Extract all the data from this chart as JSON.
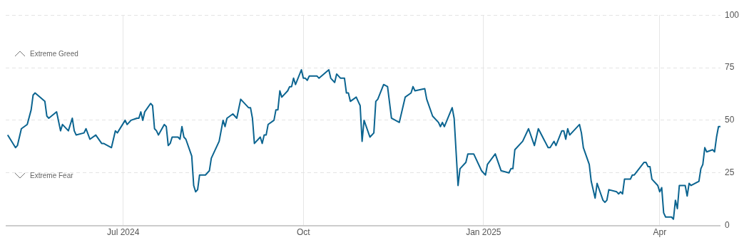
{
  "chart_data": {
    "type": "line",
    "x": [
      "2024-05-03",
      "2024-05-07",
      "2024-05-08",
      "2024-05-10",
      "2024-05-13",
      "2024-05-15",
      "2024-05-16",
      "2024-05-17",
      "2024-05-22",
      "2024-05-23",
      "2024-05-24",
      "2024-05-28",
      "2024-05-30",
      "2024-05-31",
      "2024-06-03",
      "2024-06-05",
      "2024-06-06",
      "2024-06-07",
      "2024-06-11",
      "2024-06-12",
      "2024-06-14",
      "2024-06-17",
      "2024-06-20",
      "2024-06-21",
      "2024-06-25",
      "2024-06-27",
      "2024-06-28",
      "2024-07-02",
      "2024-07-03",
      "2024-07-05",
      "2024-07-08",
      "2024-07-09",
      "2024-07-10",
      "2024-07-11",
      "2024-07-12",
      "2024-07-15",
      "2024-07-16",
      "2024-07-17",
      "2024-07-18",
      "2024-07-19",
      "2024-07-22",
      "2024-07-23",
      "2024-07-24",
      "2024-07-25",
      "2024-07-26",
      "2024-07-29",
      "2024-07-30",
      "2024-07-31",
      "2024-08-01",
      "2024-08-02",
      "2024-08-05",
      "2024-08-06",
      "2024-08-07",
      "2024-08-08",
      "2024-08-09",
      "2024-08-12",
      "2024-08-14",
      "2024-08-15",
      "2024-08-19",
      "2024-08-21",
      "2024-08-22",
      "2024-08-23",
      "2024-08-26",
      "2024-08-28",
      "2024-08-30",
      "2024-09-03",
      "2024-09-04",
      "2024-09-05",
      "2024-09-06",
      "2024-09-09",
      "2024-09-10",
      "2024-09-11",
      "2024-09-12",
      "2024-09-13",
      "2024-09-16",
      "2024-09-17",
      "2024-09-18",
      "2024-09-19",
      "2024-09-20",
      "2024-09-23",
      "2024-09-24",
      "2024-09-25",
      "2024-09-26",
      "2024-09-27",
      "2024-09-30",
      "2024-10-01",
      "2024-10-02",
      "2024-10-03",
      "2024-10-04",
      "2024-10-06",
      "2024-10-08",
      "2024-10-09",
      "2024-10-14",
      "2024-10-15",
      "2024-10-17",
      "2024-10-18",
      "2024-10-20",
      "2024-10-22",
      "2024-10-23",
      "2024-10-24",
      "2024-10-25",
      "2024-10-28",
      "2024-10-29",
      "2024-10-30",
      "2024-10-31",
      "2024-11-01",
      "2024-11-04",
      "2024-11-06",
      "2024-11-07",
      "2024-11-08",
      "2024-11-11",
      "2024-11-13",
      "2024-11-15",
      "2024-11-19",
      "2024-11-21",
      "2024-11-22",
      "2024-11-25",
      "2024-11-26",
      "2024-11-27",
      "2024-12-02",
      "2024-12-03",
      "2024-12-06",
      "2024-12-09",
      "2024-12-10",
      "2024-12-11",
      "2024-12-12",
      "2024-12-16",
      "2024-12-17",
      "2024-12-19",
      "2024-12-20",
      "2024-12-23",
      "2024-12-24",
      "2024-12-27",
      "2024-12-31",
      "2025-01-02",
      "2025-01-03",
      "2025-01-07",
      "2025-01-10",
      "2025-01-14",
      "2025-01-15",
      "2025-01-16",
      "2025-01-17",
      "2025-01-21",
      "2025-01-24",
      "2025-01-27",
      "2025-01-29",
      "2025-02-03",
      "2025-02-04",
      "2025-02-06",
      "2025-02-07",
      "2025-02-10",
      "2025-02-11",
      "2025-02-12",
      "2025-02-13",
      "2025-02-14",
      "2025-02-19",
      "2025-02-20",
      "2025-02-21",
      "2025-02-24",
      "2025-02-25",
      "2025-02-27",
      "2025-02-28",
      "2025-03-03",
      "2025-03-04",
      "2025-03-05",
      "2025-03-06",
      "2025-03-10",
      "2025-03-11",
      "2025-03-12",
      "2025-03-13",
      "2025-03-14",
      "2025-03-17",
      "2025-03-18",
      "2025-03-19",
      "2025-03-24",
      "2025-03-25",
      "2025-03-26",
      "2025-03-27",
      "2025-03-28",
      "2025-03-31",
      "2025-04-01",
      "2025-04-02",
      "2025-04-03",
      "2025-04-04",
      "2025-04-07",
      "2025-04-08",
      "2025-04-09",
      "2025-04-10",
      "2025-04-11",
      "2025-04-14",
      "2025-04-15",
      "2025-04-16",
      "2025-04-17",
      "2025-04-21",
      "2025-04-22",
      "2025-04-23",
      "2025-04-24",
      "2025-04-25",
      "2025-04-28",
      "2025-04-29",
      "2025-04-30",
      "2025-05-01",
      "2025-05-02"
    ],
    "series": [
      {
        "color": "#0b6490",
        "values": [
          43,
          37,
          38,
          46,
          48,
          55,
          62,
          63,
          59,
          52,
          51,
          54,
          45,
          48,
          45,
          51,
          45,
          43,
          44,
          46,
          41,
          43,
          39,
          39,
          37,
          45,
          44,
          50,
          48,
          50,
          51,
          51,
          54,
          50,
          54,
          58,
          57,
          46,
          45,
          43,
          48,
          47,
          38,
          39,
          42,
          42,
          41,
          47,
          42,
          41,
          33,
          19,
          16,
          17,
          24,
          24,
          26,
          32,
          40,
          50,
          47,
          51,
          53,
          51,
          60,
          56,
          56,
          51,
          39,
          42,
          39,
          43,
          43,
          48,
          50,
          55,
          55,
          64,
          61,
          64,
          66,
          66,
          70,
          67,
          74,
          70,
          70,
          69,
          71,
          71,
          71,
          70,
          74,
          70,
          68,
          72,
          70,
          70,
          63,
          63,
          59,
          61,
          59,
          57,
          40,
          50,
          42,
          44,
          59,
          60,
          67,
          66,
          51,
          49,
          57,
          61,
          63,
          66,
          64,
          65,
          60,
          52,
          49,
          47,
          49,
          47,
          56,
          51,
          19,
          27,
          30,
          34,
          34,
          26,
          24,
          29,
          34,
          26,
          25,
          27,
          27,
          36,
          40,
          46,
          38,
          46,
          37,
          37,
          40,
          38,
          45,
          45,
          41,
          46,
          43,
          48,
          44,
          37,
          29,
          21,
          13,
          20,
          12,
          11,
          12,
          17,
          16,
          15,
          16,
          15,
          22,
          22,
          24,
          24,
          30,
          30,
          28,
          28,
          22,
          19,
          16,
          18,
          6,
          4,
          4,
          3,
          12,
          8,
          19,
          19,
          14,
          20,
          19,
          21,
          27,
          29,
          37,
          35,
          36,
          35,
          42,
          47,
          47
        ]
      }
    ],
    "xlim": [
      "2024-05-02",
      "2025-05-02"
    ],
    "xticks": [
      {
        "value": "2024-07-01",
        "label": "Jul 2024"
      },
      {
        "value": "2024-10-01",
        "label": "Oct"
      },
      {
        "value": "2025-01-01",
        "label": "Jan 2025"
      },
      {
        "value": "2025-04-01",
        "label": "Apr"
      }
    ],
    "ylim": [
      0,
      100
    ],
    "yticks": [
      0,
      25,
      50,
      75,
      100
    ],
    "grid": true,
    "legend": false,
    "marker": "none",
    "line_style": "solid",
    "annotations": [
      "Extreme Greed",
      "Extreme Fear"
    ]
  }
}
